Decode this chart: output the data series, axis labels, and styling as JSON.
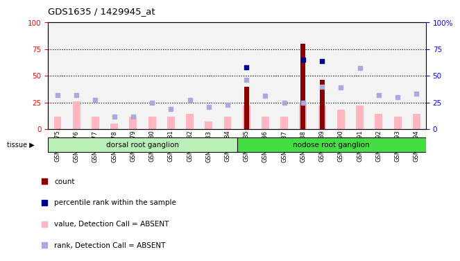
{
  "title": "GDS1635 / 1429945_at",
  "samples": [
    "GSM63675",
    "GSM63676",
    "GSM63677",
    "GSM63678",
    "GSM63679",
    "GSM63680",
    "GSM63681",
    "GSM63682",
    "GSM63683",
    "GSM63684",
    "GSM63685",
    "GSM63686",
    "GSM63687",
    "GSM63688",
    "GSM63689",
    "GSM63690",
    "GSM63691",
    "GSM63692",
    "GSM63693",
    "GSM63694"
  ],
  "count_values": [
    0,
    0,
    0,
    0,
    0,
    0,
    0,
    0,
    0,
    0,
    40,
    0,
    0,
    80,
    46,
    0,
    0,
    0,
    0,
    0
  ],
  "rank_blue_values": [
    null,
    null,
    null,
    null,
    null,
    null,
    null,
    null,
    null,
    null,
    58,
    null,
    null,
    65,
    64,
    null,
    null,
    null,
    null,
    null
  ],
  "pink_bar_values": [
    12,
    26,
    12,
    5,
    12,
    12,
    12,
    14,
    7,
    12,
    22,
    12,
    12,
    25,
    22,
    18,
    22,
    14,
    12,
    14
  ],
  "lavender_scatter_values": [
    32,
    32,
    27,
    12,
    12,
    25,
    19,
    27,
    21,
    23,
    46,
    31,
    25,
    25,
    40,
    39,
    57,
    32,
    30,
    33
  ],
  "tissue_groups": [
    {
      "label": "dorsal root ganglion",
      "start": 0,
      "end": 9,
      "color": "#b8f0b8"
    },
    {
      "label": "nodose root ganglion",
      "start": 10,
      "end": 19,
      "color": "#44dd44"
    }
  ],
  "ylim": [
    0,
    100
  ],
  "count_color": "#8b0000",
  "rank_blue_color": "#00008b",
  "pink_color": "#ffb6c1",
  "lavender_color": "#aaaadd",
  "plot_bg": "#ffffff",
  "col_bg": "#e8e8e8",
  "dotted_line_color": "#000000",
  "dotted_lines": [
    25,
    50,
    75
  ],
  "legend_items": [
    {
      "color": "#8b0000",
      "label": "count"
    },
    {
      "color": "#00008b",
      "label": "percentile rank within the sample"
    },
    {
      "color": "#ffb6c1",
      "label": "value, Detection Call = ABSENT"
    },
    {
      "color": "#aaaadd",
      "label": "rank, Detection Call = ABSENT"
    }
  ]
}
